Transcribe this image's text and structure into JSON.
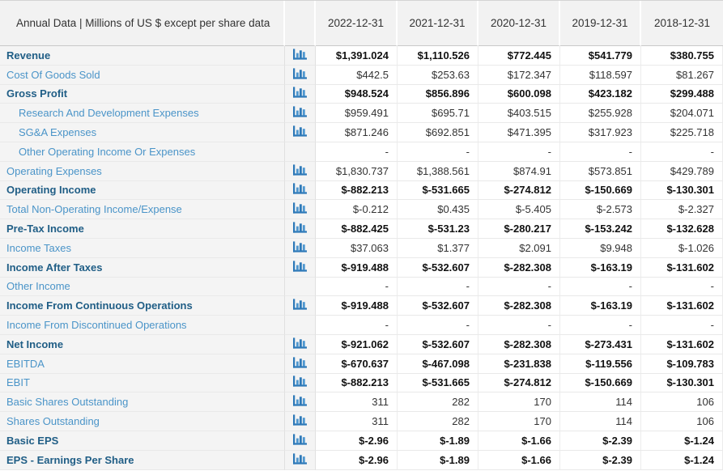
{
  "header": {
    "title": "Annual Data | Millions of US $ except per share data",
    "columns": [
      "2022-12-31",
      "2021-12-31",
      "2020-12-31",
      "2019-12-31",
      "2018-12-31"
    ]
  },
  "icons": {
    "bar_chart": "bar-chart-icon"
  },
  "colors": {
    "bold_label": "#205e86",
    "link_label": "#4a94c8",
    "icon_blue": "#2e79b8",
    "icon_blue_light": "#4f97cf",
    "value_text": "#333333",
    "bold_value_text": "#111111",
    "header_text": "#333333",
    "row_alt_bg": "#f4f4f4"
  },
  "rows": [
    {
      "label": "Revenue",
      "label_bold": true,
      "value_bold": true,
      "indent": false,
      "icon": true,
      "values": [
        "$1,391.024",
        "$1,110.526",
        "$772.445",
        "$541.779",
        "$380.755"
      ]
    },
    {
      "label": "Cost Of Goods Sold",
      "label_bold": false,
      "value_bold": false,
      "indent": false,
      "icon": true,
      "values": [
        "$442.5",
        "$253.63",
        "$172.347",
        "$118.597",
        "$81.267"
      ]
    },
    {
      "label": "Gross Profit",
      "label_bold": true,
      "value_bold": true,
      "indent": false,
      "icon": true,
      "values": [
        "$948.524",
        "$856.896",
        "$600.098",
        "$423.182",
        "$299.488"
      ]
    },
    {
      "label": "Research And Development Expenses",
      "label_bold": false,
      "value_bold": false,
      "indent": true,
      "icon": true,
      "values": [
        "$959.491",
        "$695.71",
        "$403.515",
        "$255.928",
        "$204.071"
      ]
    },
    {
      "label": "SG&A Expenses",
      "label_bold": false,
      "value_bold": false,
      "indent": true,
      "icon": true,
      "values": [
        "$871.246",
        "$692.851",
        "$471.395",
        "$317.923",
        "$225.718"
      ]
    },
    {
      "label": "Other Operating Income Or Expenses",
      "label_bold": false,
      "value_bold": false,
      "indent": true,
      "icon": false,
      "values": [
        "-",
        "-",
        "-",
        "-",
        "-"
      ]
    },
    {
      "label": "Operating Expenses",
      "label_bold": false,
      "value_bold": false,
      "indent": false,
      "icon": true,
      "values": [
        "$1,830.737",
        "$1,388.561",
        "$874.91",
        "$573.851",
        "$429.789"
      ]
    },
    {
      "label": "Operating Income",
      "label_bold": true,
      "value_bold": true,
      "indent": false,
      "icon": true,
      "values": [
        "$-882.213",
        "$-531.665",
        "$-274.812",
        "$-150.669",
        "$-130.301"
      ]
    },
    {
      "label": "Total Non-Operating Income/Expense",
      "label_bold": false,
      "value_bold": false,
      "indent": false,
      "icon": true,
      "values": [
        "$-0.212",
        "$0.435",
        "$-5.405",
        "$-2.573",
        "$-2.327"
      ]
    },
    {
      "label": "Pre-Tax Income",
      "label_bold": true,
      "value_bold": true,
      "indent": false,
      "icon": true,
      "values": [
        "$-882.425",
        "$-531.23",
        "$-280.217",
        "$-153.242",
        "$-132.628"
      ]
    },
    {
      "label": "Income Taxes",
      "label_bold": false,
      "value_bold": false,
      "indent": false,
      "icon": true,
      "values": [
        "$37.063",
        "$1.377",
        "$2.091",
        "$9.948",
        "$-1.026"
      ]
    },
    {
      "label": "Income After Taxes",
      "label_bold": true,
      "value_bold": true,
      "indent": false,
      "icon": true,
      "values": [
        "$-919.488",
        "$-532.607",
        "$-282.308",
        "$-163.19",
        "$-131.602"
      ]
    },
    {
      "label": "Other Income",
      "label_bold": false,
      "value_bold": false,
      "indent": false,
      "icon": false,
      "values": [
        "-",
        "-",
        "-",
        "-",
        "-"
      ]
    },
    {
      "label": "Income From Continuous Operations",
      "label_bold": true,
      "value_bold": true,
      "indent": false,
      "icon": true,
      "values": [
        "$-919.488",
        "$-532.607",
        "$-282.308",
        "$-163.19",
        "$-131.602"
      ]
    },
    {
      "label": "Income From Discontinued Operations",
      "label_bold": false,
      "value_bold": false,
      "indent": false,
      "icon": false,
      "values": [
        "-",
        "-",
        "-",
        "-",
        "-"
      ]
    },
    {
      "label": "Net Income",
      "label_bold": true,
      "value_bold": true,
      "indent": false,
      "icon": true,
      "values": [
        "$-921.062",
        "$-532.607",
        "$-282.308",
        "$-273.431",
        "$-131.602"
      ]
    },
    {
      "label": "EBITDA",
      "label_bold": false,
      "value_bold": true,
      "indent": false,
      "icon": true,
      "values": [
        "$-670.637",
        "$-467.098",
        "$-231.838",
        "$-119.556",
        "$-109.783"
      ]
    },
    {
      "label": "EBIT",
      "label_bold": false,
      "value_bold": true,
      "indent": false,
      "icon": true,
      "values": [
        "$-882.213",
        "$-531.665",
        "$-274.812",
        "$-150.669",
        "$-130.301"
      ]
    },
    {
      "label": "Basic Shares Outstanding",
      "label_bold": false,
      "value_bold": false,
      "indent": false,
      "icon": true,
      "values": [
        "311",
        "282",
        "170",
        "114",
        "106"
      ]
    },
    {
      "label": "Shares Outstanding",
      "label_bold": false,
      "value_bold": false,
      "indent": false,
      "icon": true,
      "values": [
        "311",
        "282",
        "170",
        "114",
        "106"
      ]
    },
    {
      "label": "Basic EPS",
      "label_bold": true,
      "value_bold": true,
      "indent": false,
      "icon": true,
      "values": [
        "$-2.96",
        "$-1.89",
        "$-1.66",
        "$-2.39",
        "$-1.24"
      ]
    },
    {
      "label": "EPS - Earnings Per Share",
      "label_bold": true,
      "value_bold": true,
      "indent": false,
      "icon": true,
      "values": [
        "$-2.96",
        "$-1.89",
        "$-1.66",
        "$-2.39",
        "$-1.24"
      ]
    }
  ]
}
